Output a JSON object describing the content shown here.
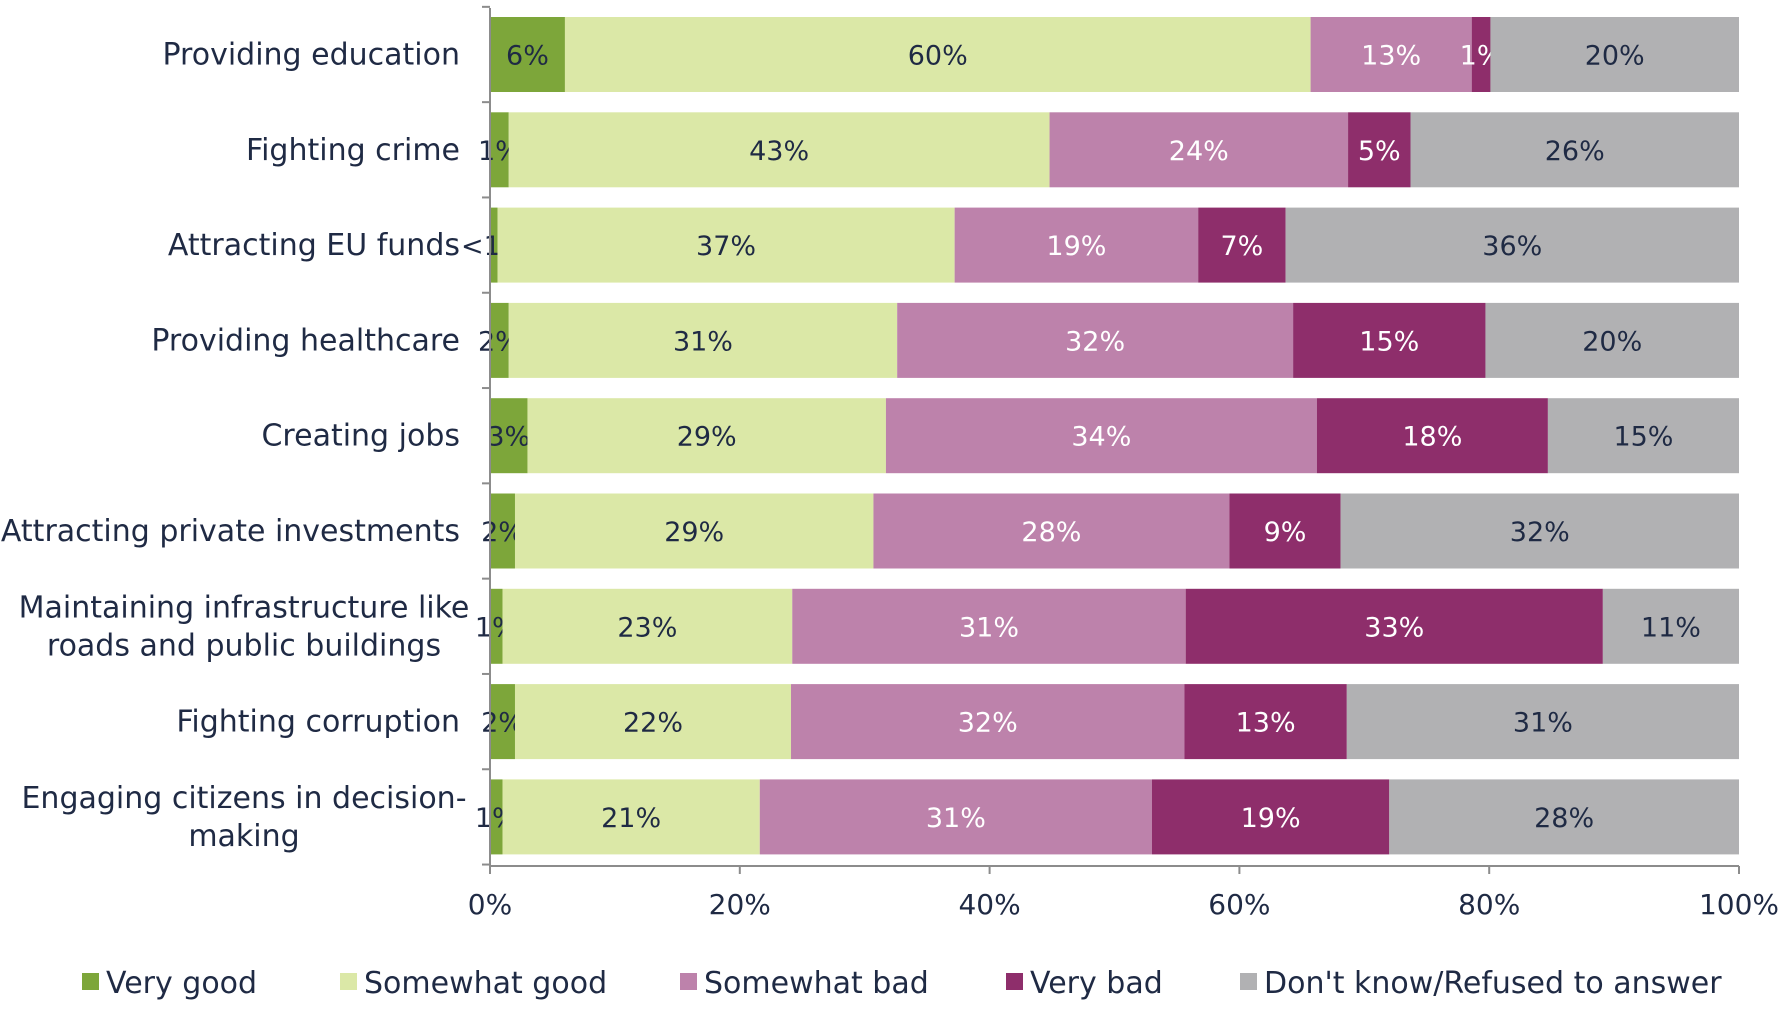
{
  "chart_data": {
    "type": "bar",
    "orientation": "horizontal",
    "stacked": true,
    "title": "",
    "xlabel": "",
    "ylabel": "",
    "xlim": [
      0,
      100
    ],
    "x_ticks": [
      "0%",
      "20%",
      "40%",
      "60%",
      "80%",
      "100%"
    ],
    "grid": false,
    "legend_position": "bottom",
    "categories": [
      [
        "Providing education"
      ],
      [
        "Fighting crime"
      ],
      [
        "Attracting EU funds"
      ],
      [
        "Providing healthcare"
      ],
      [
        "Creating jobs"
      ],
      [
        "Attracting private investments"
      ],
      [
        "Maintaining infrastructure like",
        "roads and public buildings"
      ],
      [
        "Fighting corruption"
      ],
      [
        "Engaging citizens in decision-",
        "making"
      ]
    ],
    "series": [
      {
        "name": "Very good",
        "color": "#7da63a",
        "label_color": "#1f2a44",
        "values": [
          6,
          1.5,
          0.6,
          1.5,
          3,
          2,
          1,
          2,
          1
        ],
        "labels": [
          "6%",
          "1%",
          "<1%",
          "2%",
          "3%",
          "2%",
          "1%",
          "2%",
          "1%"
        ]
      },
      {
        "name": "Somewhat good",
        "color": "#dbe8a7",
        "label_color": "#1f2a44",
        "values": [
          59.7,
          43.3,
          36.6,
          31.1,
          28.7,
          28.7,
          23.2,
          22.1,
          20.6
        ],
        "labels": [
          "60%",
          "43%",
          "37%",
          "31%",
          "29%",
          "29%",
          "23%",
          "22%",
          "21%"
        ]
      },
      {
        "name": "Somewhat bad",
        "color": "#bd82ab",
        "label_color": "#ffffff",
        "values": [
          12.9,
          23.9,
          19.5,
          31.7,
          34.5,
          28.5,
          31.5,
          31.5,
          31.4
        ],
        "labels": [
          "13%",
          "24%",
          "19%",
          "32%",
          "34%",
          "28%",
          "31%",
          "32%",
          "31%"
        ]
      },
      {
        "name": "Very bad",
        "color": "#8e2e6b",
        "label_color": "#ffffff",
        "values": [
          1.5,
          5,
          7,
          15.4,
          18.5,
          8.9,
          33.4,
          13,
          19
        ],
        "labels": [
          "1%",
          "5%",
          "7%",
          "15%",
          "18%",
          "9%",
          "33%",
          "13%",
          "19%"
        ]
      },
      {
        "name": "Don't know/Refused to answer",
        "color": "#b1b1b3",
        "label_color": "#1f2a44",
        "values": [
          19.9,
          26.3,
          36.3,
          20.3,
          15.3,
          31.9,
          10.9,
          31.4,
          28
        ],
        "labels": [
          "20%",
          "26%",
          "36%",
          "20%",
          "15%",
          "32%",
          "11%",
          "31%",
          "28%"
        ]
      }
    ]
  }
}
